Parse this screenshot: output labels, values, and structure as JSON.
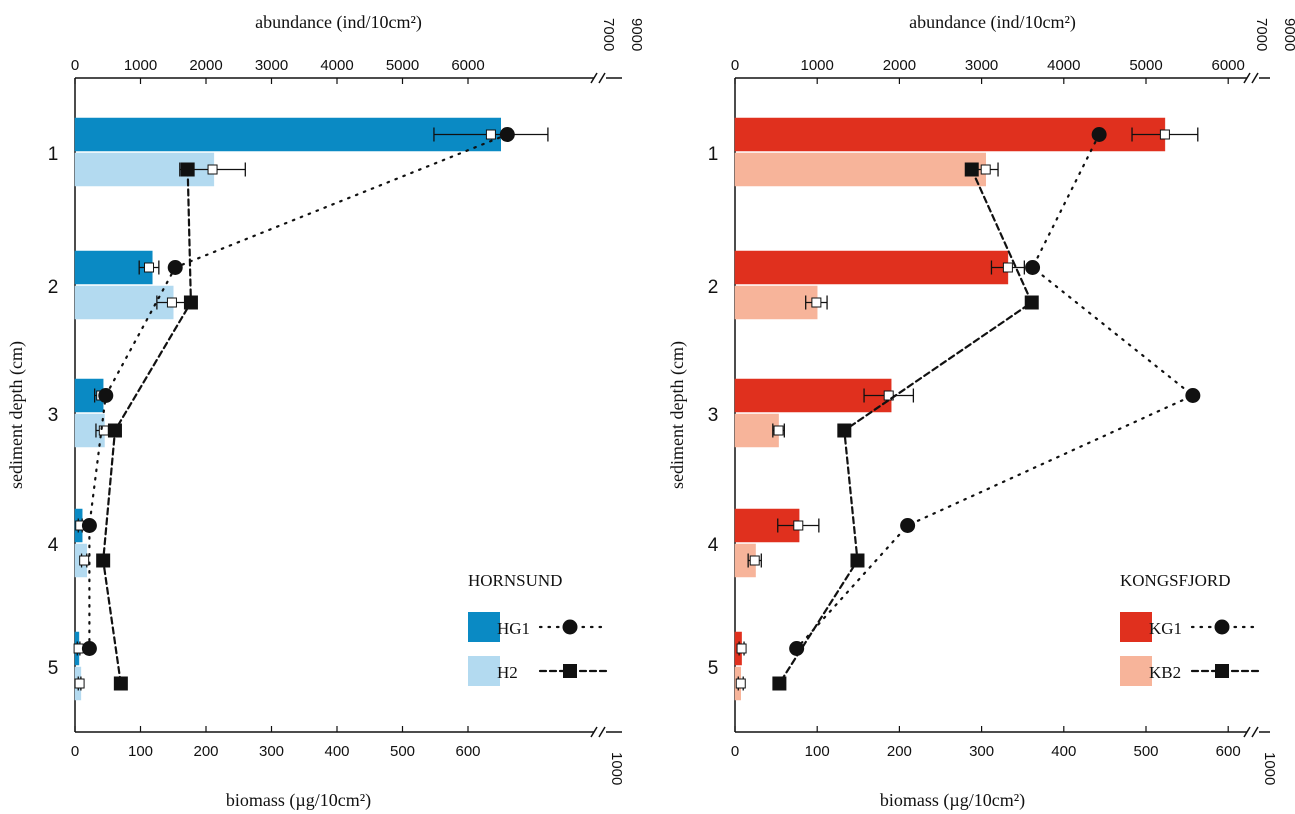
{
  "chart_data": [
    {
      "type": "bar",
      "panel_label": "HORNSUND",
      "top_axis_label": "abundance (ind/10cm²)",
      "bottom_axis_label": "biomass (µg/10cm²)",
      "y_axis_label": "sediment depth (cm)",
      "categories": [
        "1",
        "2",
        "3",
        "4",
        "5"
      ],
      "biomass_axis": {
        "ticks": [
          "0",
          "100",
          "200",
          "300",
          "400",
          "500",
          "600"
        ],
        "break_label": "1000",
        "range": [
          0,
          650
        ]
      },
      "abundance_axis": {
        "ticks": [
          "0",
          "1000",
          "2000",
          "3000",
          "4000",
          "5000",
          "6000"
        ],
        "break_labels": [
          "7000",
          "9000"
        ],
        "range": [
          0,
          6500
        ]
      },
      "series": [
        {
          "name": "HG1",
          "color": "#0A8AC4",
          "biomass": [
            650,
            118,
            43,
            11,
            6
          ],
          "abundance": [
            6350,
            1130,
            400,
            80,
            55
          ],
          "abundance_err": [
            870,
            150,
            100,
            30,
            20
          ],
          "biomass_err": [
            null,
            null,
            null,
            null,
            null
          ],
          "marker": "circle",
          "line_style": "dotted",
          "biomass_line": [
            660,
            153,
            47,
            22,
            22
          ]
        },
        {
          "name": "H2",
          "color": "#B3DAF0",
          "biomass": [
            212,
            150,
            45,
            18,
            9
          ],
          "abundance": [
            2100,
            1480,
            440,
            140,
            70
          ],
          "abundance_err": [
            500,
            230,
            120,
            40,
            20
          ],
          "biomass_err": [
            12,
            12,
            null,
            null,
            null
          ],
          "marker": "square",
          "line_style": "dashed",
          "biomass_line": [
            172,
            177,
            61,
            43,
            70
          ]
        }
      ]
    },
    {
      "type": "bar",
      "panel_label": "KONGSFJORD",
      "top_axis_label": "abundance (ind/10cm²)",
      "bottom_axis_label": "biomass (µg/10cm²)",
      "y_axis_label": "sediment depth (cm)",
      "categories": [
        "1",
        "2",
        "3",
        "4",
        "5"
      ],
      "biomass_axis": {
        "ticks": [
          "0",
          "100",
          "200",
          "300",
          "400",
          "500",
          "600"
        ],
        "break_label": "1000",
        "range": [
          0,
          640
        ]
      },
      "abundance_axis": {
        "ticks": [
          "0",
          "1000",
          "2000",
          "3000",
          "4000",
          "5000",
          "6000"
        ],
        "break_labels": [
          "7000",
          "9000"
        ],
        "range": [
          0,
          6400
        ]
      },
      "series": [
        {
          "name": "KG1",
          "color": "#E0301E",
          "biomass": [
            523,
            332,
            190,
            78,
            8
          ],
          "abundance": [
            5230,
            3320,
            1870,
            770,
            80
          ],
          "abundance_err": [
            400,
            200,
            300,
            250,
            30
          ],
          "biomass_err": [
            null,
            null,
            null,
            null,
            null
          ],
          "marker": "circle",
          "line_style": "dotted",
          "biomass_line": [
            443,
            362,
            557,
            210,
            75
          ]
        },
        {
          "name": "KB2",
          "color": "#F7B49A",
          "biomass": [
            305,
            100,
            53,
            25,
            7
          ],
          "abundance": [
            3050,
            990,
            530,
            240,
            70
          ],
          "abundance_err": [
            150,
            130,
            70,
            80,
            30
          ],
          "biomass_err": [
            null,
            null,
            null,
            null,
            null
          ],
          "marker": "square",
          "line_style": "dashed",
          "biomass_line": [
            288,
            361,
            133,
            149,
            54
          ]
        }
      ]
    }
  ]
}
